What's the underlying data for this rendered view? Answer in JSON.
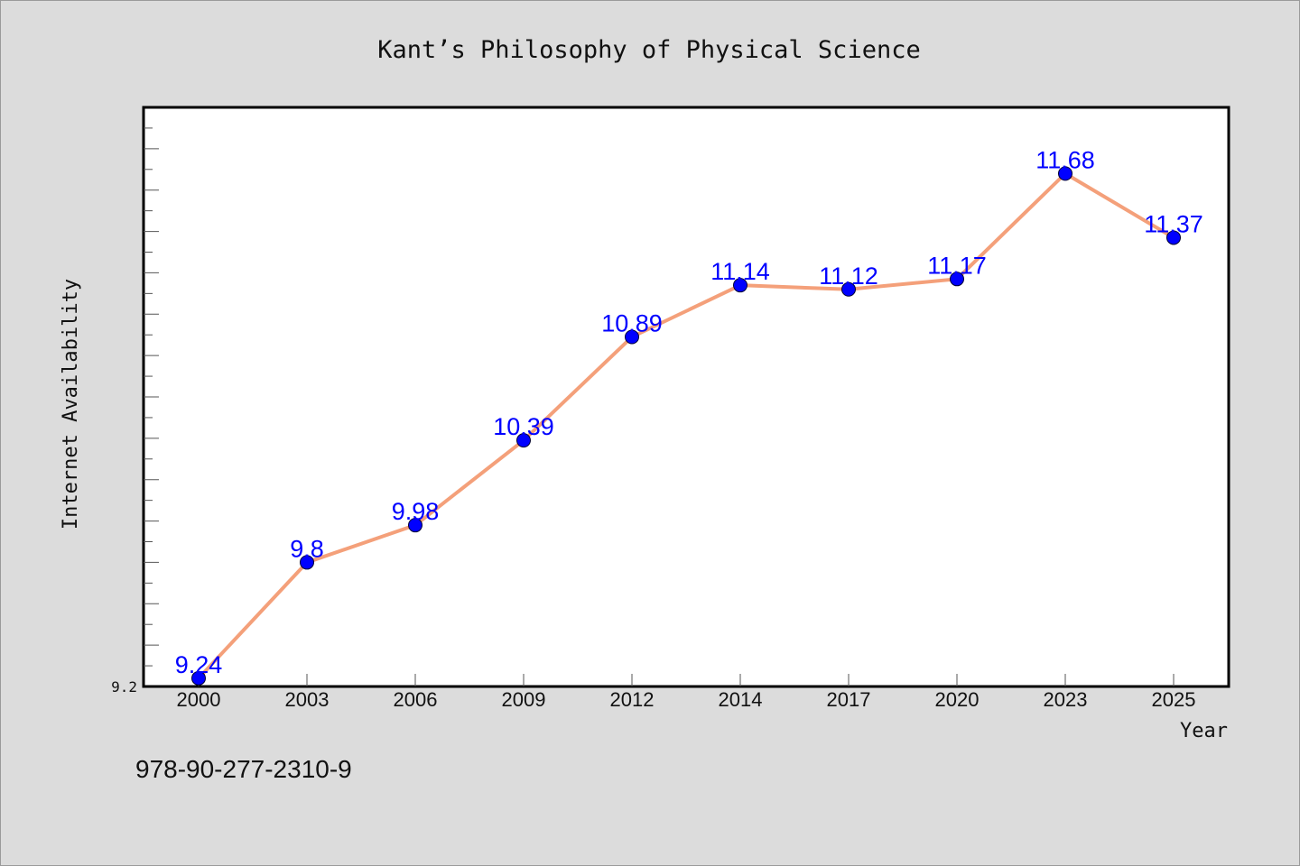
{
  "chart_data": {
    "type": "line",
    "title": "Kant’s Philosophy of Physical Science",
    "xlabel": "Year",
    "ylabel": "Internet Availability",
    "categories": [
      "2000",
      "2003",
      "2006",
      "2009",
      "2012",
      "2014",
      "2017",
      "2020",
      "2023",
      "2025"
    ],
    "series": [
      {
        "values": [
          9.24,
          9.8,
          9.98,
          10.39,
          10.89,
          11.14,
          11.12,
          11.17,
          11.68,
          11.37
        ],
        "labels": [
          "9.24",
          "9.8",
          "9.98",
          "10.39",
          "10.89",
          "11.14",
          "11.12",
          "11.17",
          "11.68",
          "11.37"
        ],
        "line_color": "#f4a07a",
        "marker_color": "#0000ff"
      }
    ],
    "ylim": [
      9.2,
      12.0
    ],
    "yticks_labeled": [
      "9.2"
    ],
    "grid": false,
    "legend": "none"
  },
  "footer": {
    "isbn": "978-90-277-2310-9"
  }
}
